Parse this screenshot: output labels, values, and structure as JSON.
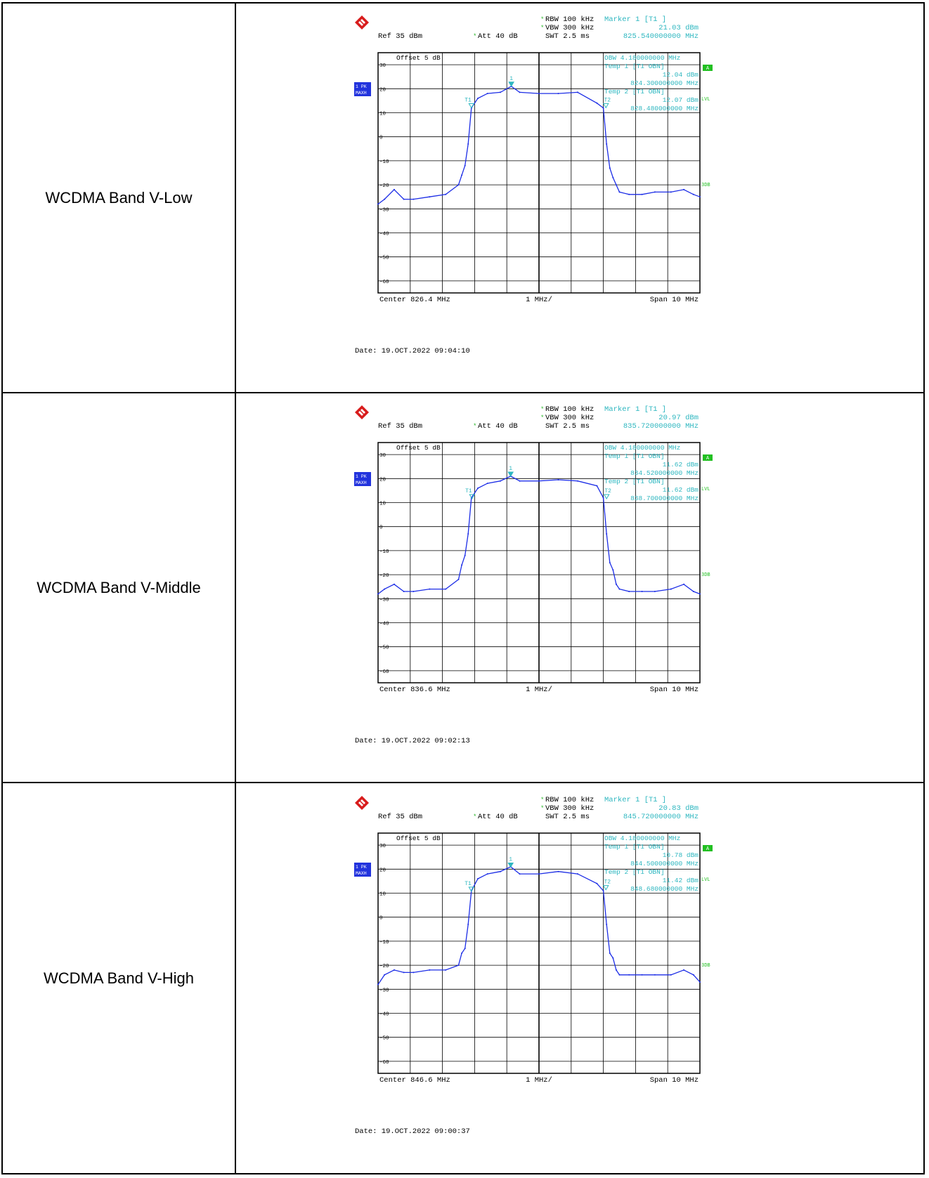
{
  "rows": [
    {
      "label": "WCDMA Band V-Low",
      "plot": {
        "logo_icon": "rohde-schwarz-logo",
        "rbw": "RBW 100 kHz",
        "vbw": "VBW 300 kHz",
        "swt": "SWT 2.5 ms",
        "ref": "Ref  35 dBm",
        "att": "Att  40 dB",
        "offset": "Offset  5 dB",
        "marker_title": "Marker 1 [T1 ]",
        "marker_level": "21.03 dBm",
        "marker_freq": "825.540000000 MHz",
        "obw": "OBW  4.180000000 MHz",
        "temp1_title": "Temp 1 [T1 OBN]",
        "temp1_level": "12.04 dBm",
        "temp1_freq": "824.300000000 MHz",
        "temp2_title": "Temp 2 [T1 OBN]",
        "temp2_level": "12.07 dBm",
        "temp2_freq": "828.480000000 MHz",
        "trace_badge_1": "1 PK",
        "trace_badge_2": "MAXH",
        "side_a": "A",
        "side_lvl": "LVL",
        "side_3db": "3DB",
        "center": "Center 826.4 MHz",
        "div": "1 MHz/",
        "span": "Span 10 MHz",
        "date": "Date: 19.OCT.2022  09:04:10",
        "marker1_label": "1",
        "t1_label": "T1",
        "t2_label": "T2"
      },
      "chart_data": {
        "type": "line",
        "xlabel": "",
        "ylabel": "",
        "xlim_mhz": [
          821.4,
          831.4
        ],
        "ylim_dbm": [
          -65,
          35
        ],
        "y_ticks": [
          "30",
          "20",
          "10",
          "0",
          "-10",
          "-20",
          "-30",
          "-40",
          "-50",
          "-60"
        ],
        "grid": true,
        "series": [
          {
            "x": [
              821.4,
              821.6,
              821.9,
              822.2,
              822.5,
              823.0,
              823.5,
              823.9,
              824.0,
              824.1,
              824.2,
              824.3,
              824.5,
              824.8,
              825.2,
              825.54,
              825.8,
              826.4,
              827.0,
              827.6,
              828.2,
              828.4,
              828.5,
              828.6,
              828.7,
              828.8,
              828.9,
              829.2,
              829.6,
              830.0,
              830.5,
              830.9,
              831.2,
              831.4
            ],
            "y": [
              -28,
              -26,
              -22,
              -26,
              -26,
              -25,
              -24,
              -20,
              -16,
              -12,
              -3,
              12,
              16,
              18,
              18.5,
              21,
              18.5,
              18,
              18,
              18.5,
              14,
              12,
              -3,
              -13,
              -17,
              -20,
              -23,
              -24,
              -24,
              -23,
              -23,
              -22,
              -24,
              -25
            ]
          }
        ],
        "markers": [
          {
            "name": "1",
            "x": 825.54,
            "y": 21.03
          },
          {
            "name": "T1",
            "x": 824.3,
            "y": 12.04
          },
          {
            "name": "T2",
            "x": 828.48,
            "y": 12.07
          }
        ]
      }
    },
    {
      "label": "WCDMA Band V-Middle",
      "plot": {
        "logo_icon": "rohde-schwarz-logo",
        "rbw": "RBW 100 kHz",
        "vbw": "VBW 300 kHz",
        "swt": "SWT 2.5 ms",
        "ref": "Ref  35 dBm",
        "att": "Att  40 dB",
        "offset": "Offset  5 dB",
        "marker_title": "Marker 1 [T1 ]",
        "marker_level": "20.97 dBm",
        "marker_freq": "835.720000000 MHz",
        "obw": "OBW  4.180000000 MHz",
        "temp1_title": "Temp 1 [T1 OBN]",
        "temp1_level": "11.62 dBm",
        "temp1_freq": "834.520000000 MHz",
        "temp2_title": "Temp 2 [T1 OBN]",
        "temp2_level": "11.62 dBm",
        "temp2_freq": "838.700000000 MHz",
        "trace_badge_1": "1 PK",
        "trace_badge_2": "MAXH",
        "side_a": "A",
        "side_lvl": "LVL",
        "side_3db": "3DB",
        "center": "Center 836.6 MHz",
        "div": "1 MHz/",
        "span": "Span 10 MHz",
        "date": "Date: 19.OCT.2022  09:02:13",
        "marker1_label": "1",
        "t1_label": "T1",
        "t2_label": "T2"
      },
      "chart_data": {
        "type": "line",
        "xlabel": "",
        "ylabel": "",
        "xlim_mhz": [
          831.6,
          841.6
        ],
        "ylim_dbm": [
          -65,
          35
        ],
        "y_ticks": [
          "30",
          "20",
          "10",
          "0",
          "-10",
          "-20",
          "-30",
          "-40",
          "-50",
          "-60"
        ],
        "grid": true,
        "series": [
          {
            "x": [
              831.6,
              831.8,
              832.1,
              832.4,
              832.7,
              833.2,
              833.7,
              834.1,
              834.2,
              834.3,
              834.4,
              834.5,
              834.7,
              835.0,
              835.4,
              835.72,
              836.0,
              836.6,
              837.2,
              837.8,
              838.4,
              838.6,
              838.7,
              838.8,
              838.9,
              839.0,
              839.1,
              839.4,
              839.8,
              840.2,
              840.7,
              841.1,
              841.4,
              841.6
            ],
            "y": [
              -28,
              -26,
              -24,
              -27,
              -27,
              -26,
              -26,
              -22,
              -16,
              -12,
              -3,
              12,
              16,
              18,
              19,
              21,
              19,
              19,
              19.5,
              19,
              17,
              12,
              -3,
              -15,
              -18,
              -24,
              -26,
              -27,
              -27,
              -27,
              -26,
              -24,
              -27,
              -28
            ]
          }
        ],
        "markers": [
          {
            "name": "1",
            "x": 835.72,
            "y": 20.97
          },
          {
            "name": "T1",
            "x": 834.52,
            "y": 11.62
          },
          {
            "name": "T2",
            "x": 838.7,
            "y": 11.62
          }
        ]
      }
    },
    {
      "label": "WCDMA Band V-High",
      "plot": {
        "logo_icon": "rohde-schwarz-logo",
        "rbw": "RBW 100 kHz",
        "vbw": "VBW 300 kHz",
        "swt": "SWT 2.5 ms",
        "ref": "Ref  35 dBm",
        "att": "Att  40 dB",
        "offset": "Offset  5 dB",
        "marker_title": "Marker 1 [T1 ]",
        "marker_level": "20.83 dBm",
        "marker_freq": "845.720000000 MHz",
        "obw": "OBW  4.180000000 MHz",
        "temp1_title": "Temp 1 [T1 OBN]",
        "temp1_level": "10.78 dBm",
        "temp1_freq": "844.500000000 MHz",
        "temp2_title": "Temp 2 [T1 OBN]",
        "temp2_level": "11.42 dBm",
        "temp2_freq": "848.680000000 MHz",
        "trace_badge_1": "1 PK",
        "trace_badge_2": "MAXH",
        "side_a": "A",
        "side_lvl": "LVL",
        "side_3db": "3DB",
        "center": "Center 846.6 MHz",
        "div": "1 MHz/",
        "span": "Span 10 MHz",
        "date": "Date: 19.OCT.2022  09:00:37",
        "marker1_label": "1",
        "t1_label": "T1",
        "t2_label": "T2"
      },
      "chart_data": {
        "type": "line",
        "xlabel": "",
        "ylabel": "",
        "xlim_mhz": [
          841.6,
          851.6
        ],
        "ylim_dbm": [
          -65,
          35
        ],
        "y_ticks": [
          "30",
          "20",
          "10",
          "0",
          "-10",
          "-20",
          "-30",
          "-40",
          "-50",
          "-60"
        ],
        "grid": true,
        "series": [
          {
            "x": [
              841.6,
              841.8,
              842.1,
              842.4,
              842.7,
              843.2,
              843.7,
              844.1,
              844.2,
              844.3,
              844.4,
              844.5,
              844.7,
              845.0,
              845.4,
              845.72,
              846.0,
              846.6,
              847.2,
              847.8,
              848.4,
              848.6,
              848.7,
              848.8,
              848.9,
              849.0,
              849.1,
              849.4,
              849.8,
              850.2,
              850.7,
              851.1,
              851.4,
              851.6
            ],
            "y": [
              -28,
              -24,
              -22,
              -23,
              -23,
              -22,
              -22,
              -20,
              -15,
              -13,
              -3,
              11,
              16,
              18,
              19,
              21,
              18,
              18,
              19,
              18,
              14,
              11,
              -3,
              -15,
              -17,
              -22,
              -24,
              -24,
              -24,
              -24,
              -24,
              -22,
              -24,
              -27
            ]
          }
        ],
        "markers": [
          {
            "name": "1",
            "x": 845.72,
            "y": 20.83
          },
          {
            "name": "T1",
            "x": 844.5,
            "y": 10.78
          },
          {
            "name": "T2",
            "x": 848.68,
            "y": 11.42
          }
        ]
      }
    }
  ],
  "colors": {
    "trace": "#1c2de6",
    "marker": "#2fb7c0",
    "grid": "#000000",
    "text": "#000000",
    "badge": "#2233dd",
    "side_green": "#22c022"
  }
}
